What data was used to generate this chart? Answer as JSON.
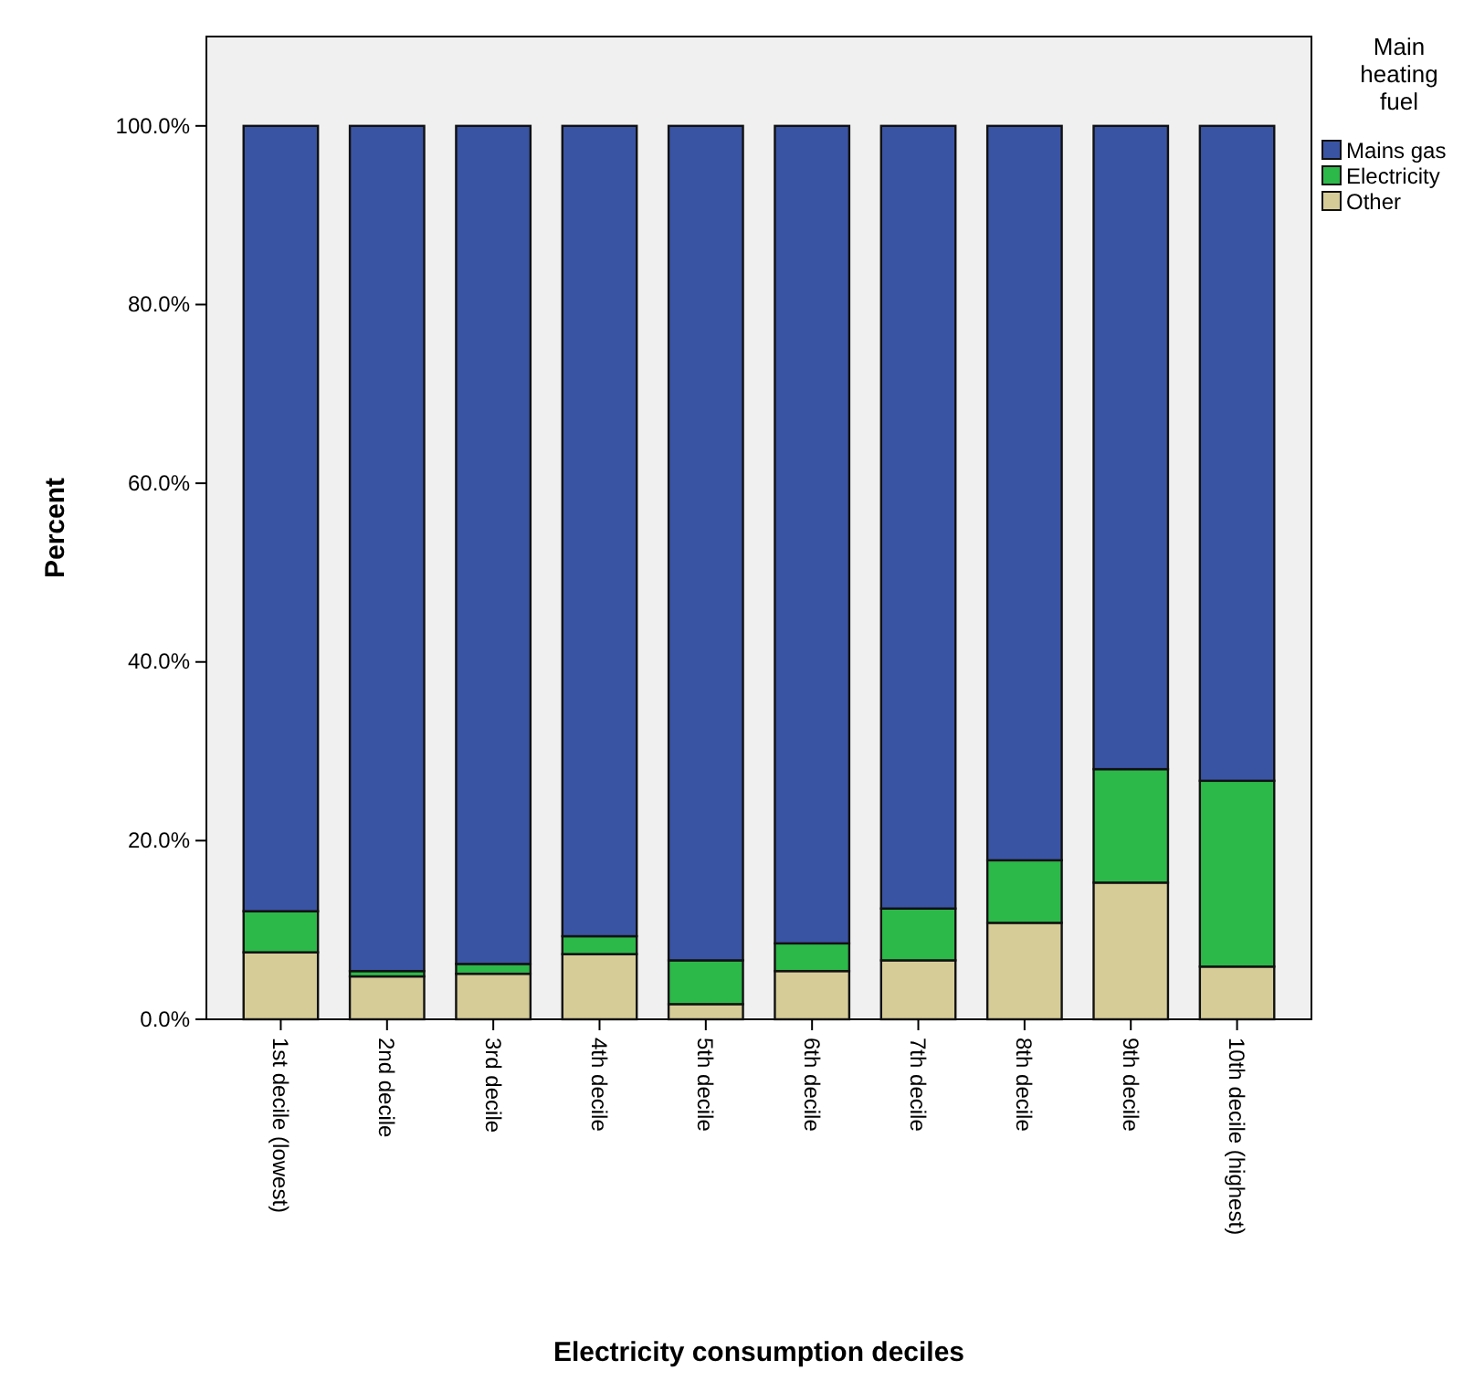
{
  "chart_data": {
    "type": "bar",
    "stacked": true,
    "xlabel": "Electricity consumption deciles",
    "ylabel": "Percent",
    "legend_title": "Main heating fuel",
    "legend": "top right",
    "categories": [
      "1st decile (lowest)",
      "2nd decile",
      "3rd decile",
      "4th decile",
      "5th decile",
      "6th decile",
      "7th decile",
      "8th decile",
      "9th decile",
      "10th decile (highest)"
    ],
    "series": [
      {
        "name": "Other",
        "color": "#d6cc98",
        "values": [
          7.5,
          4.8,
          5.1,
          7.3,
          1.7,
          5.4,
          6.6,
          10.8,
          15.3,
          5.9
        ]
      },
      {
        "name": "Electricity",
        "color": "#2db84a",
        "values": [
          4.6,
          0.6,
          1.1,
          2.0,
          4.9,
          3.1,
          5.8,
          7.0,
          12.7,
          20.8
        ]
      },
      {
        "name": "Mains gas",
        "color": "#3a54a4",
        "values": [
          87.9,
          94.6,
          93.8,
          90.7,
          93.4,
          91.5,
          87.6,
          82.2,
          72.0,
          73.3
        ]
      }
    ],
    "ylim": [
      0,
      110
    ],
    "yticks": [
      {
        "value": 0,
        "label": "0.0%"
      },
      {
        "value": 20,
        "label": "20.0%"
      },
      {
        "value": 40,
        "label": "40.0%"
      },
      {
        "value": 60,
        "label": "60.0%"
      },
      {
        "value": 80,
        "label": "80.0%"
      },
      {
        "value": 100,
        "label": "100.0%"
      }
    ],
    "grid": false
  }
}
